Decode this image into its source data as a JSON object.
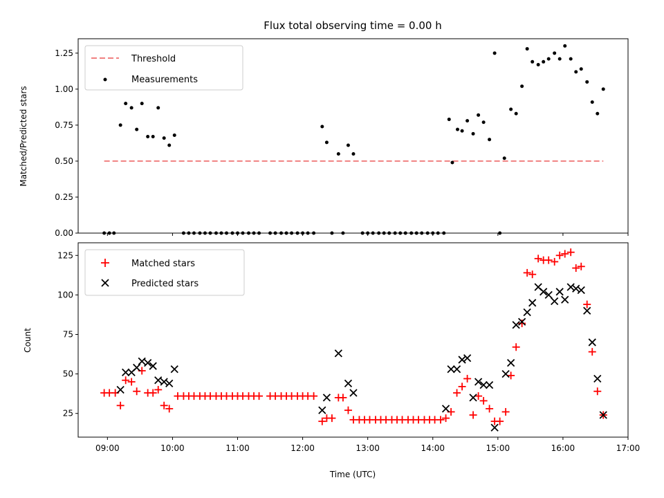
{
  "title": "Flux total observing time = 0.00 h",
  "xlabel": "Time (UTC)",
  "x_ticks": [
    "09:00",
    "10:00",
    "11:00",
    "12:00",
    "13:00",
    "14:00",
    "15:00",
    "16:00",
    "17:00"
  ],
  "chart_data": [
    {
      "type": "scatter",
      "ylabel": "Matched/Predicted stars",
      "xlim_hours": [
        8.55,
        17.0
      ],
      "ylim": [
        0,
        1.35
      ],
      "y_ticks": [
        "0.00",
        "0.25",
        "0.50",
        "0.75",
        "1.00",
        "1.25"
      ],
      "legend": {
        "placement": "top-left",
        "entries": [
          "Threshold",
          "Measurements"
        ]
      },
      "threshold": {
        "name": "Threshold",
        "value": 0.5,
        "x_range_hours": [
          8.95,
          16.62
        ],
        "color": "#f08080"
      },
      "series": [
        {
          "name": "Measurements",
          "color": "#000000",
          "points": [
            [
              8.95,
              0.0
            ],
            [
              9.03,
              0.0
            ],
            [
              9.1,
              0.0
            ],
            [
              9.2,
              0.75
            ],
            [
              9.28,
              0.9
            ],
            [
              9.37,
              0.87
            ],
            [
              9.45,
              0.72
            ],
            [
              9.53,
              0.9
            ],
            [
              9.62,
              0.67
            ],
            [
              9.7,
              0.67
            ],
            [
              9.78,
              0.87
            ],
            [
              9.87,
              0.66
            ],
            [
              9.95,
              0.61
            ],
            [
              10.03,
              0.68
            ],
            [
              10.17,
              0.0
            ],
            [
              10.25,
              0.0
            ],
            [
              10.33,
              0.0
            ],
            [
              10.42,
              0.0
            ],
            [
              10.5,
              0.0
            ],
            [
              10.58,
              0.0
            ],
            [
              10.67,
              0.0
            ],
            [
              10.75,
              0.0
            ],
            [
              10.83,
              0.0
            ],
            [
              10.92,
              0.0
            ],
            [
              11.0,
              0.0
            ],
            [
              11.08,
              0.0
            ],
            [
              11.17,
              0.0
            ],
            [
              11.25,
              0.0
            ],
            [
              11.33,
              0.0
            ],
            [
              11.5,
              0.0
            ],
            [
              11.58,
              0.0
            ],
            [
              11.67,
              0.0
            ],
            [
              11.75,
              0.0
            ],
            [
              11.83,
              0.0
            ],
            [
              11.92,
              0.0
            ],
            [
              12.0,
              0.0
            ],
            [
              12.08,
              0.0
            ],
            [
              12.17,
              0.0
            ],
            [
              12.3,
              0.74
            ],
            [
              12.37,
              0.63
            ],
            [
              12.45,
              0.0
            ],
            [
              12.55,
              0.55
            ],
            [
              12.62,
              0.0
            ],
            [
              12.7,
              0.61
            ],
            [
              12.78,
              0.55
            ],
            [
              12.92,
              0.0
            ],
            [
              13.0,
              0.0
            ],
            [
              13.08,
              0.0
            ],
            [
              13.17,
              0.0
            ],
            [
              13.25,
              0.0
            ],
            [
              13.33,
              0.0
            ],
            [
              13.42,
              0.0
            ],
            [
              13.5,
              0.0
            ],
            [
              13.58,
              0.0
            ],
            [
              13.67,
              0.0
            ],
            [
              13.75,
              0.0
            ],
            [
              13.83,
              0.0
            ],
            [
              13.92,
              0.0
            ],
            [
              14.0,
              0.0
            ],
            [
              14.08,
              0.0
            ],
            [
              14.17,
              0.0
            ],
            [
              14.25,
              0.79
            ],
            [
              14.3,
              0.49
            ],
            [
              14.38,
              0.72
            ],
            [
              14.45,
              0.71
            ],
            [
              14.53,
              0.78
            ],
            [
              14.62,
              0.69
            ],
            [
              14.7,
              0.82
            ],
            [
              14.78,
              0.77
            ],
            [
              14.87,
              0.65
            ],
            [
              14.95,
              1.25
            ],
            [
              15.03,
              0.0
            ],
            [
              15.1,
              0.52
            ],
            [
              15.2,
              0.86
            ],
            [
              15.28,
              0.83
            ],
            [
              15.37,
              1.02
            ],
            [
              15.45,
              1.28
            ],
            [
              15.53,
              1.19
            ],
            [
              15.62,
              1.17
            ],
            [
              15.7,
              1.19
            ],
            [
              15.78,
              1.21
            ],
            [
              15.87,
              1.25
            ],
            [
              15.95,
              1.21
            ],
            [
              16.03,
              1.3
            ],
            [
              16.12,
              1.21
            ],
            [
              16.2,
              1.12
            ],
            [
              16.28,
              1.14
            ],
            [
              16.37,
              1.05
            ],
            [
              16.45,
              0.91
            ],
            [
              16.53,
              0.83
            ],
            [
              16.62,
              1.0
            ]
          ]
        }
      ]
    },
    {
      "type": "scatter",
      "ylabel": "Count",
      "xlim_hours": [
        8.55,
        17.0
      ],
      "ylim": [
        10,
        133
      ],
      "y_ticks": [
        "25",
        "50",
        "75",
        "100",
        "125"
      ],
      "legend": {
        "placement": "top-left",
        "entries": [
          "Matched stars",
          "Predicted stars"
        ]
      },
      "series": [
        {
          "name": "Matched stars",
          "marker": "plus",
          "color": "#ff0000",
          "points": [
            [
              8.95,
              38
            ],
            [
              9.03,
              38
            ],
            [
              9.12,
              38
            ],
            [
              9.2,
              30
            ],
            [
              9.28,
              46
            ],
            [
              9.37,
              45
            ],
            [
              9.45,
              39
            ],
            [
              9.53,
              52
            ],
            [
              9.62,
              38
            ],
            [
              9.7,
              38
            ],
            [
              9.78,
              40
            ],
            [
              9.87,
              30
            ],
            [
              9.95,
              28
            ],
            [
              10.08,
              36
            ],
            [
              10.17,
              36
            ],
            [
              10.25,
              36
            ],
            [
              10.33,
              36
            ],
            [
              10.42,
              36
            ],
            [
              10.5,
              36
            ],
            [
              10.58,
              36
            ],
            [
              10.67,
              36
            ],
            [
              10.75,
              36
            ],
            [
              10.83,
              36
            ],
            [
              10.92,
              36
            ],
            [
              11.0,
              36
            ],
            [
              11.08,
              36
            ],
            [
              11.17,
              36
            ],
            [
              11.25,
              36
            ],
            [
              11.33,
              36
            ],
            [
              11.5,
              36
            ],
            [
              11.58,
              36
            ],
            [
              11.67,
              36
            ],
            [
              11.75,
              36
            ],
            [
              11.83,
              36
            ],
            [
              11.92,
              36
            ],
            [
              12.0,
              36
            ],
            [
              12.08,
              36
            ],
            [
              12.17,
              36
            ],
            [
              12.3,
              20
            ],
            [
              12.37,
              22
            ],
            [
              12.45,
              22
            ],
            [
              12.55,
              35
            ],
            [
              12.62,
              35
            ],
            [
              12.7,
              27
            ],
            [
              12.78,
              21
            ],
            [
              12.87,
              21
            ],
            [
              12.95,
              21
            ],
            [
              13.03,
              21
            ],
            [
              13.12,
              21
            ],
            [
              13.2,
              21
            ],
            [
              13.28,
              21
            ],
            [
              13.37,
              21
            ],
            [
              13.45,
              21
            ],
            [
              13.53,
              21
            ],
            [
              13.62,
              21
            ],
            [
              13.7,
              21
            ],
            [
              13.78,
              21
            ],
            [
              13.87,
              21
            ],
            [
              13.95,
              21
            ],
            [
              14.03,
              21
            ],
            [
              14.12,
              21
            ],
            [
              14.2,
              22
            ],
            [
              14.28,
              26
            ],
            [
              14.37,
              38
            ],
            [
              14.45,
              42
            ],
            [
              14.53,
              47
            ],
            [
              14.62,
              24
            ],
            [
              14.7,
              36
            ],
            [
              14.78,
              33
            ],
            [
              14.87,
              28
            ],
            [
              14.95,
              20
            ],
            [
              15.03,
              20
            ],
            [
              15.12,
              26
            ],
            [
              15.2,
              49
            ],
            [
              15.28,
              67
            ],
            [
              15.37,
              82
            ],
            [
              15.45,
              114
            ],
            [
              15.53,
              113
            ],
            [
              15.62,
              123
            ],
            [
              15.7,
              122
            ],
            [
              15.78,
              122
            ],
            [
              15.87,
              121
            ],
            [
              15.95,
              125
            ],
            [
              16.03,
              126
            ],
            [
              16.12,
              127
            ],
            [
              16.2,
              117
            ],
            [
              16.28,
              118
            ],
            [
              16.37,
              94
            ],
            [
              16.45,
              64
            ],
            [
              16.53,
              39
            ],
            [
              16.62,
              24
            ]
          ]
        },
        {
          "name": "Predicted stars",
          "marker": "x",
          "color": "#000000",
          "points": [
            [
              9.2,
              40
            ],
            [
              9.28,
              51
            ],
            [
              9.37,
              51
            ],
            [
              9.45,
              54
            ],
            [
              9.53,
              58
            ],
            [
              9.62,
              57
            ],
            [
              9.7,
              55
            ],
            [
              9.78,
              46
            ],
            [
              9.87,
              45
            ],
            [
              9.95,
              44
            ],
            [
              10.03,
              53
            ],
            [
              12.3,
              27
            ],
            [
              12.37,
              35
            ],
            [
              12.55,
              63
            ],
            [
              12.7,
              44
            ],
            [
              12.78,
              38
            ],
            [
              14.2,
              28
            ],
            [
              14.28,
              53
            ],
            [
              14.37,
              53
            ],
            [
              14.45,
              59
            ],
            [
              14.53,
              60
            ],
            [
              14.62,
              35
            ],
            [
              14.7,
              45
            ],
            [
              14.78,
              43
            ],
            [
              14.87,
              43
            ],
            [
              14.95,
              16
            ],
            [
              15.12,
              50
            ],
            [
              15.2,
              57
            ],
            [
              15.28,
              81
            ],
            [
              15.37,
              83
            ],
            [
              15.45,
              89
            ],
            [
              15.53,
              95
            ],
            [
              15.62,
              105
            ],
            [
              15.7,
              102
            ],
            [
              15.78,
              100
            ],
            [
              15.87,
              96
            ],
            [
              15.95,
              102
            ],
            [
              16.03,
              97
            ],
            [
              16.12,
              105
            ],
            [
              16.2,
              104
            ],
            [
              16.28,
              103
            ],
            [
              16.37,
              90
            ],
            [
              16.45,
              70
            ],
            [
              16.53,
              47
            ],
            [
              16.62,
              24
            ]
          ]
        }
      ]
    }
  ]
}
